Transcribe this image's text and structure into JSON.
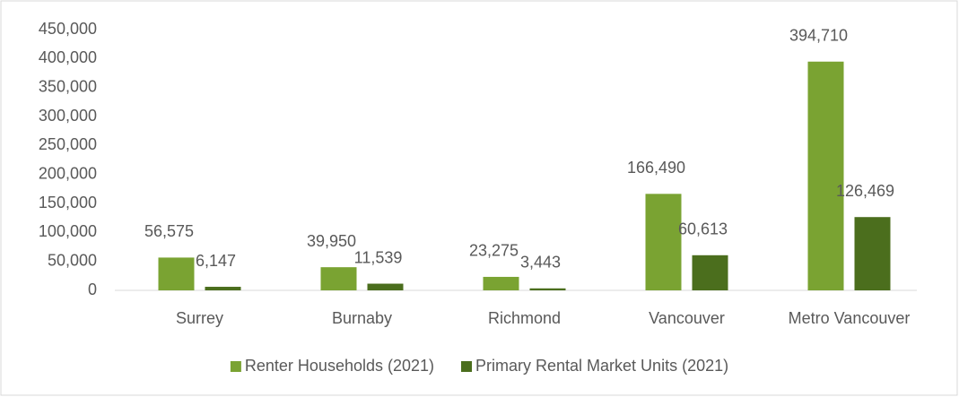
{
  "chart_data": {
    "type": "bar",
    "categories": [
      "Surrey",
      "Burnaby",
      "Richmond",
      "Vancouver",
      "Metro Vancouver"
    ],
    "series": [
      {
        "name": "Renter Households (2021)",
        "color": "#7aa332",
        "values": [
          56575,
          39950,
          23275,
          166490,
          394710
        ],
        "value_labels": [
          "56,575",
          "39,950",
          "23,275",
          "166,490",
          "394,710"
        ]
      },
      {
        "name": "Primary Rental Market Units (2021)",
        "color": "#4b6e1d",
        "values": [
          6147,
          11539,
          3443,
          60613,
          126469
        ],
        "value_labels": [
          "6,147",
          "11,539",
          "3,443",
          "60,613",
          "126,469"
        ]
      }
    ],
    "ylim": [
      0,
      450000
    ],
    "yticks": [
      0,
      {
        "value": 50000,
        "label": "50,000"
      },
      {
        "value": 100000,
        "label": "100,000"
      },
      {
        "value": 150000,
        "label": "150,000"
      },
      {
        "value": 200000,
        "label": "200,000"
      },
      {
        "value": 250000,
        "label": "250,000"
      },
      {
        "value": 300000,
        "label": "300,000"
      },
      {
        "value": 350000,
        "label": "350,000"
      },
      {
        "value": 400000,
        "label": "400,000"
      },
      {
        "value": 450000,
        "label": "450,000"
      }
    ],
    "grid": false,
    "legend": "bottom"
  }
}
